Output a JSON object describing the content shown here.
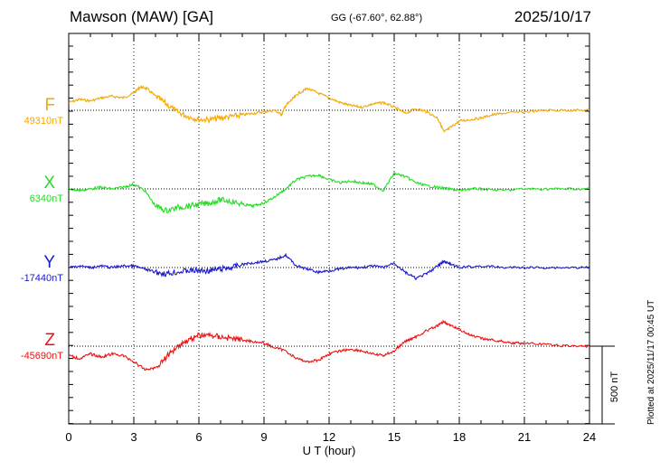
{
  "header": {
    "title": "Mawson (MAW)  [GA]",
    "coords": "GG (-67.60°,  62.88°)",
    "date": "2025/10/17"
  },
  "plotted": "Plotted at 2025/11/17 00:45 UT",
  "scale_label": "500 nT",
  "chart_data": {
    "type": "line",
    "title": "Mawson (MAW)  [GA]",
    "xlabel": "U T (hour)",
    "ylabel": "",
    "xlim": [
      0,
      24
    ],
    "xticks": [
      0,
      3,
      6,
      9,
      12,
      15,
      18,
      21,
      24
    ],
    "xtick_labels": [
      "0",
      "3",
      "6",
      "9",
      "12",
      "15",
      "18",
      "21",
      "24"
    ],
    "grid": true,
    "scale_bar_nT": 500,
    "series": [
      {
        "name": "F",
        "color": "#f5a800",
        "baseline_label": "49310nT",
        "baseline_nT": 49310,
        "x": [
          0,
          0.5,
          1,
          1.5,
          2,
          2.5,
          3,
          3.3,
          3.6,
          4,
          4.5,
          5,
          5.5,
          6,
          6.5,
          7,
          7.5,
          8,
          8.5,
          9,
          9.5,
          9.8,
          10,
          10.3,
          10.6,
          11,
          11.5,
          12,
          12.5,
          13,
          13.5,
          14,
          14.5,
          15,
          15.5,
          16,
          16.5,
          17,
          17.3,
          17.6,
          18,
          18.5,
          19,
          19.5,
          20,
          21,
          22,
          23,
          24
        ],
        "y": [
          49360,
          49380,
          49370,
          49390,
          49400,
          49390,
          49420,
          49460,
          49450,
          49400,
          49350,
          49300,
          49270,
          49250,
          49250,
          49260,
          49270,
          49280,
          49290,
          49300,
          49310,
          49280,
          49340,
          49380,
          49420,
          49450,
          49420,
          49390,
          49360,
          49340,
          49330,
          49350,
          49360,
          49330,
          49290,
          49320,
          49300,
          49260,
          49170,
          49200,
          49240,
          49250,
          49260,
          49280,
          49290,
          49300,
          49310,
          49310,
          49310
        ]
      },
      {
        "name": "X",
        "color": "#22dd22",
        "baseline_label": "6340nT",
        "baseline_nT": 6340,
        "x": [
          0,
          0.5,
          1,
          1.5,
          2,
          2.5,
          3,
          3.5,
          4,
          4.5,
          5,
          5.5,
          6,
          6.5,
          7,
          7.5,
          8,
          8.5,
          9,
          9.5,
          10,
          10.5,
          11,
          11.5,
          12,
          12.5,
          13,
          13.5,
          14,
          14.5,
          15,
          15.5,
          16,
          16.5,
          17,
          17.5,
          18,
          18.5,
          19,
          20,
          21,
          22,
          23,
          24
        ],
        "y": [
          6340,
          6330,
          6340,
          6350,
          6340,
          6350,
          6370,
          6330,
          6230,
          6200,
          6220,
          6230,
          6240,
          6250,
          6270,
          6260,
          6240,
          6230,
          6250,
          6290,
          6340,
          6400,
          6420,
          6430,
          6400,
          6380,
          6390,
          6380,
          6370,
          6330,
          6440,
          6420,
          6380,
          6360,
          6350,
          6340,
          6330,
          6340,
          6340,
          6330,
          6340,
          6340,
          6340,
          6340
        ]
      },
      {
        "name": "Y",
        "color": "#1a1acc",
        "baseline_label": "-17440nT",
        "baseline_nT": -17440,
        "x": [
          0,
          0.5,
          1,
          1.5,
          2,
          2.5,
          3,
          3.5,
          4,
          4.5,
          5,
          5.5,
          6,
          6.5,
          7,
          7.5,
          8,
          8.5,
          9,
          9.5,
          10,
          10.5,
          11,
          11.5,
          12,
          12.5,
          13,
          13.5,
          14,
          14.5,
          15,
          15.5,
          16,
          16.5,
          17,
          17.3,
          17.6,
          18,
          19,
          20,
          21,
          22,
          23,
          24
        ],
        "y": [
          -17440,
          -17430,
          -17440,
          -17430,
          -17440,
          -17430,
          -17430,
          -17450,
          -17470,
          -17480,
          -17470,
          -17460,
          -17460,
          -17460,
          -17450,
          -17440,
          -17420,
          -17410,
          -17400,
          -17390,
          -17360,
          -17430,
          -17450,
          -17470,
          -17460,
          -17450,
          -17440,
          -17440,
          -17430,
          -17440,
          -17410,
          -17470,
          -17510,
          -17480,
          -17430,
          -17400,
          -17420,
          -17440,
          -17430,
          -17440,
          -17440,
          -17440,
          -17440,
          -17440
        ]
      },
      {
        "name": "Z",
        "color": "#ee1111",
        "baseline_label": "-45690nT",
        "baseline_nT": -45690,
        "x": [
          0,
          0.5,
          1,
          1.5,
          2,
          2.5,
          3,
          3.5,
          4,
          4.5,
          5,
          5.5,
          6,
          6.5,
          7,
          7.5,
          8,
          8.5,
          9,
          9.5,
          10,
          10.5,
          11,
          11.5,
          12,
          12.5,
          13,
          13.5,
          14,
          14.5,
          15,
          15.5,
          16,
          16.5,
          17,
          17.3,
          17.6,
          18,
          18.5,
          19,
          19.5,
          20,
          20.5,
          21,
          22,
          23,
          24
        ],
        "y": [
          -45750,
          -45770,
          -45740,
          -45760,
          -45740,
          -45750,
          -45790,
          -45840,
          -45830,
          -45760,
          -45690,
          -45650,
          -45620,
          -45620,
          -45630,
          -45640,
          -45650,
          -45660,
          -45670,
          -45700,
          -45720,
          -45770,
          -45790,
          -45780,
          -45740,
          -45720,
          -45710,
          -45720,
          -45740,
          -45750,
          -45720,
          -45660,
          -45630,
          -45590,
          -45560,
          -45530,
          -45560,
          -45580,
          -45620,
          -45640,
          -45650,
          -45660,
          -45670,
          -45670,
          -45680,
          -45690,
          -45690
        ]
      }
    ]
  }
}
